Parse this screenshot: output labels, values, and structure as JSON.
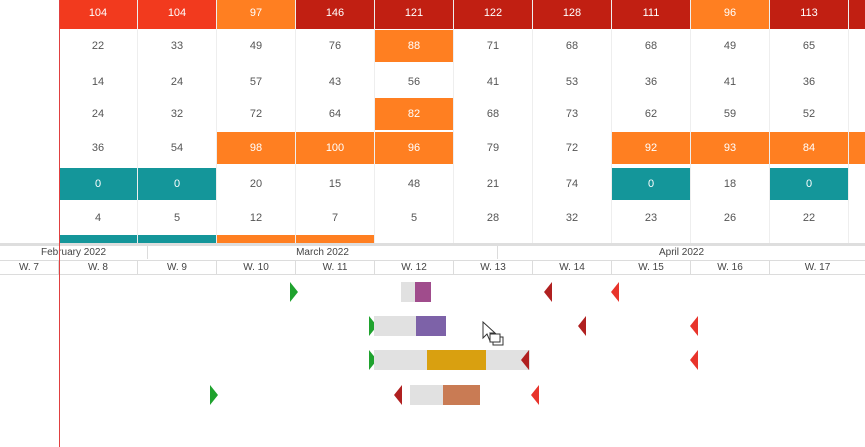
{
  "colors": {
    "red": "#f23a1e",
    "darkred": "#c11f12",
    "orange": "#ff7f21",
    "teal": "#14969a",
    "plain": "#ffffff"
  },
  "grid": {
    "rows": [
      {
        "cells": [
          {
            "v": "104",
            "c": "red"
          },
          {
            "v": "104",
            "c": "red"
          },
          {
            "v": "97",
            "c": "orange"
          },
          {
            "v": "146",
            "c": "darkred"
          },
          {
            "v": "121",
            "c": "darkred"
          },
          {
            "v": "122",
            "c": "darkred"
          },
          {
            "v": "128",
            "c": "darkred"
          },
          {
            "v": "111",
            "c": "darkred"
          },
          {
            "v": "96",
            "c": "orange"
          },
          {
            "v": "113",
            "c": "darkred"
          },
          {
            "v": "",
            "c": "darkred"
          }
        ]
      },
      {
        "cells": [
          {
            "v": "22",
            "c": "plain"
          },
          {
            "v": "33",
            "c": "plain"
          },
          {
            "v": "49",
            "c": "plain"
          },
          {
            "v": "76",
            "c": "plain"
          },
          {
            "v": "88",
            "c": "orange"
          },
          {
            "v": "71",
            "c": "plain"
          },
          {
            "v": "68",
            "c": "plain"
          },
          {
            "v": "68",
            "c": "plain"
          },
          {
            "v": "49",
            "c": "plain"
          },
          {
            "v": "65",
            "c": "plain"
          },
          {
            "v": "",
            "c": "plain"
          }
        ]
      },
      {
        "cells": [
          {
            "v": "14",
            "c": "plain"
          },
          {
            "v": "24",
            "c": "plain"
          },
          {
            "v": "57",
            "c": "plain"
          },
          {
            "v": "43",
            "c": "plain"
          },
          {
            "v": "56",
            "c": "plain"
          },
          {
            "v": "41",
            "c": "plain"
          },
          {
            "v": "53",
            "c": "plain"
          },
          {
            "v": "36",
            "c": "plain"
          },
          {
            "v": "41",
            "c": "plain"
          },
          {
            "v": "36",
            "c": "plain"
          },
          {
            "v": "",
            "c": "plain"
          }
        ]
      },
      {
        "cells": [
          {
            "v": "24",
            "c": "plain"
          },
          {
            "v": "32",
            "c": "plain"
          },
          {
            "v": "72",
            "c": "plain"
          },
          {
            "v": "64",
            "c": "plain"
          },
          {
            "v": "82",
            "c": "orange"
          },
          {
            "v": "68",
            "c": "plain"
          },
          {
            "v": "73",
            "c": "plain"
          },
          {
            "v": "62",
            "c": "plain"
          },
          {
            "v": "59",
            "c": "plain"
          },
          {
            "v": "52",
            "c": "plain"
          },
          {
            "v": "",
            "c": "plain"
          }
        ]
      },
      {
        "cells": [
          {
            "v": "36",
            "c": "plain"
          },
          {
            "v": "54",
            "c": "plain"
          },
          {
            "v": "98",
            "c": "orange"
          },
          {
            "v": "100",
            "c": "orange"
          },
          {
            "v": "96",
            "c": "orange"
          },
          {
            "v": "79",
            "c": "plain"
          },
          {
            "v": "72",
            "c": "plain"
          },
          {
            "v": "92",
            "c": "orange"
          },
          {
            "v": "93",
            "c": "orange"
          },
          {
            "v": "84",
            "c": "orange"
          },
          {
            "v": "",
            "c": "orange"
          }
        ]
      },
      {
        "cells": [
          {
            "v": "0",
            "c": "teal"
          },
          {
            "v": "0",
            "c": "teal"
          },
          {
            "v": "20",
            "c": "plain"
          },
          {
            "v": "15",
            "c": "plain"
          },
          {
            "v": "48",
            "c": "plain"
          },
          {
            "v": "21",
            "c": "plain"
          },
          {
            "v": "74",
            "c": "plain"
          },
          {
            "v": "0",
            "c": "teal"
          },
          {
            "v": "18",
            "c": "plain"
          },
          {
            "v": "0",
            "c": "teal"
          },
          {
            "v": "",
            "c": "plain"
          }
        ]
      },
      {
        "cells": [
          {
            "v": "4",
            "c": "plain"
          },
          {
            "v": "5",
            "c": "plain"
          },
          {
            "v": "12",
            "c": "plain"
          },
          {
            "v": "7",
            "c": "plain"
          },
          {
            "v": "5",
            "c": "plain"
          },
          {
            "v": "28",
            "c": "plain"
          },
          {
            "v": "32",
            "c": "plain"
          },
          {
            "v": "23",
            "c": "plain"
          },
          {
            "v": "26",
            "c": "plain"
          },
          {
            "v": "22",
            "c": "plain"
          },
          {
            "v": "",
            "c": "plain"
          }
        ]
      },
      {
        "cells": [
          {
            "v": "",
            "c": "teal"
          },
          {
            "v": "",
            "c": "teal"
          },
          {
            "v": "",
            "c": "orange"
          },
          {
            "v": "",
            "c": "orange"
          },
          {
            "v": "",
            "c": "plain"
          },
          {
            "v": "",
            "c": "plain"
          },
          {
            "v": "",
            "c": "plain"
          },
          {
            "v": "",
            "c": "plain"
          },
          {
            "v": "",
            "c": "plain"
          },
          {
            "v": "",
            "c": "plain"
          },
          {
            "v": "",
            "c": "plain"
          }
        ]
      }
    ]
  },
  "timeline": {
    "months": [
      "February 2022",
      "March 2022",
      "April 2022"
    ],
    "weeks": [
      "W. 7",
      "W. 8",
      "W. 9",
      "W. 10",
      "W. 11",
      "W. 12",
      "W. 13",
      "W. 14",
      "W. 15",
      "W. 16",
      "W. 17"
    ],
    "task_colors": [
      "#a04c8c",
      "#7d62a8",
      "#d9a010",
      "#c97b54"
    ]
  },
  "icons": {
    "cursor": "move-cursor-icon",
    "milestone_start": "green-triangle-icon",
    "milestone_due": "red-triangle-icon"
  }
}
